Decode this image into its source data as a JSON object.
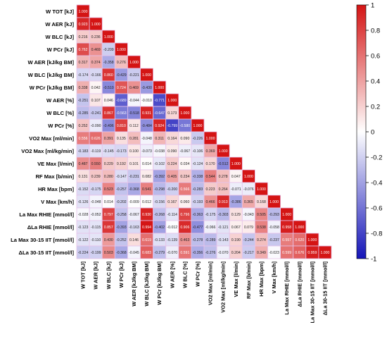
{
  "chart_data": {
    "type": "heatmap",
    "variables": [
      "W TOT [kJ]",
      "W AER [kJ]",
      "W BLC [kJ]",
      "W PCr [kJ]",
      "W AER [kJ/kg BM]",
      "W BLC [kJ/kg BM]",
      "W PCr [kJ/kg BM]",
      "W AER [%]",
      "W BLC [%]",
      "W PCr [%]",
      "VO2 Max [ml/min]",
      "VO2 Max [ml/kg/min]",
      "VE Max [l/min]",
      "RF Max [b/min]",
      "HR Max [bpm]",
      "V Max [km/h]",
      "La Max RHIE [mmol/l]",
      "ΔLa RHIE [mmol/l]",
      "La Max 30-15 IIT [mmol/l]",
      "ΔLa 30-15 IIT [mmol/l]"
    ],
    "matrix": [
      [
        "1.000"
      ],
      [
        "0.923",
        "1.000"
      ],
      [
        "0.216",
        "0.236",
        "1.000"
      ],
      [
        "0.762",
        "0.469",
        "-0.209",
        "1.000"
      ],
      [
        "0.317",
        "0.374",
        "-0.358",
        "0.276",
        "1.000"
      ],
      [
        "-0.174",
        "-0.166",
        "0.860",
        "-0.429",
        "-0.221",
        "1.000"
      ],
      [
        "0.338",
        "0.042",
        "-0.510",
        "0.724",
        "0.469",
        "-0.430",
        "1.000"
      ],
      [
        "-0.251",
        "0.107",
        "0.046",
        "-0.689",
        "-0.044",
        "-0.010",
        "-0.771",
        "1.000"
      ],
      [
        "-0.285",
        "-0.241",
        "0.867",
        "-0.563",
        "-0.518",
        "0.931",
        "-0.647",
        "0.173",
        "1.000"
      ],
      [
        "0.252",
        "-0.090",
        "-0.496",
        "0.810",
        "0.112",
        "-0.484",
        "0.924",
        "-0.799",
        "-0.580",
        "1.000"
      ],
      [
        "0.556",
        "0.626",
        "0.391",
        "0.135",
        "0.281",
        "-0.048",
        "0.311",
        "0.164",
        "0.090",
        "-0.226",
        "1.000"
      ],
      [
        "-0.183",
        "-0.119",
        "-0.145",
        "-0.173",
        "0.100",
        "-0.073",
        "-0.038",
        "0.090",
        "-0.067",
        "-0.106",
        "0.369",
        "1.000"
      ],
      [
        "0.487",
        "0.550",
        "0.229",
        "0.192",
        "0.101",
        "0.014",
        "-0.102",
        "0.224",
        "0.034",
        "-0.124",
        "0.170",
        "-0.512",
        "1.000"
      ],
      [
        "0.131",
        "0.239",
        "0.280",
        "-0.147",
        "-0.231",
        "0.082",
        "-0.392",
        "0.405",
        "0.234",
        "-0.338",
        "0.544",
        "0.278",
        "0.047",
        "1.000"
      ],
      [
        "-0.152",
        "-0.175",
        "0.523",
        "-0.257",
        "-0.368",
        "0.541",
        "-0.298",
        "-0.200",
        "0.566",
        "-0.283",
        "0.223",
        "0.264",
        "-0.071",
        "-0.076",
        "1.000"
      ],
      [
        "-0.126",
        "-0.048",
        "0.014",
        "-0.202",
        "-0.009",
        "0.012",
        "-0.156",
        "0.167",
        "0.060",
        "-0.193",
        "0.466",
        "0.913",
        "-0.386",
        "0.365",
        "0.168",
        "1.000"
      ],
      [
        "-0.028",
        "-0.052",
        "0.797",
        "-0.258",
        "-0.067",
        "0.930",
        "-0.268",
        "-0.114",
        "0.796",
        "-0.363",
        "-0.175",
        "-0.303",
        "0.129",
        "-0.043",
        "0.505",
        "-0.293",
        "1.000"
      ],
      [
        "-0.123",
        "-0.115",
        "0.857",
        "-0.393",
        "-0.163",
        "0.994",
        "-0.402",
        "-0.012",
        "0.906",
        "-0.477",
        "-0.066",
        "-0.121",
        "0.067",
        "0.079",
        "0.538",
        "-0.058",
        "0.958",
        "1.000"
      ],
      [
        "-0.122",
        "-0.110",
        "0.430",
        "-0.252",
        "0.146",
        "0.619",
        "-0.133",
        "-0.139",
        "0.463",
        "-0.278",
        "-0.289",
        "-0.143",
        "0.190",
        "-0.244",
        "0.274",
        "-0.237",
        "0.557",
        "0.620",
        "1.000"
      ],
      [
        "-0.224",
        "-0.199",
        "0.503",
        "-0.368",
        "-0.045",
        "0.683",
        "-0.279",
        "-0.070",
        "0.591",
        "-0.356",
        "-0.276",
        "-0.070",
        "0.204",
        "-0.217",
        "0.349",
        "-0.023",
        "0.599",
        "0.676",
        "0.959",
        "1.000"
      ]
    ],
    "colorbar": {
      "min": -1,
      "max": 1,
      "ticks": [
        "1",
        "0.8",
        "0.6",
        "0.4",
        "0.2",
        "0",
        "-0.2",
        "-0.4",
        "-0.6",
        "-0.8",
        "-1"
      ]
    },
    "colors": {
      "negative": "#1515b8",
      "neutral": "#ffffff",
      "positive": "#d41414",
      "border": "#e7c3ea"
    }
  }
}
